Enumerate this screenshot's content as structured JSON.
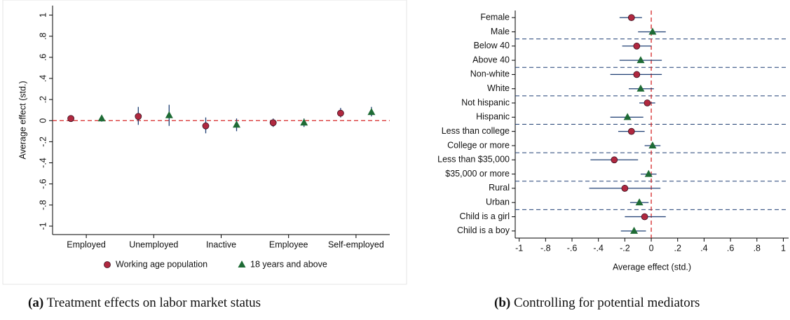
{
  "chart_data": [
    {
      "type": "errorbar",
      "ylabel": "Average effect (std.)",
      "categories": [
        "Employed",
        "Unemployed",
        "Inactive",
        "Employee",
        "Self-employed"
      ],
      "series": [
        {
          "name": "Working age population",
          "color": "#b0283f",
          "marker": "circle",
          "values": [
            0.02,
            0.04,
            -0.05,
            -0.02,
            0.07
          ],
          "lower": [
            -0.01,
            -0.04,
            -0.12,
            -0.06,
            0.03
          ],
          "upper": [
            0.05,
            0.13,
            0.03,
            0.02,
            0.12
          ]
        },
        {
          "name": "18 years and above",
          "color": "#1e6b35",
          "marker": "triangle",
          "values": [
            0.02,
            0.05,
            -0.04,
            -0.02,
            0.08
          ],
          "lower": [
            -0.01,
            -0.05,
            -0.1,
            -0.06,
            0.04
          ],
          "upper": [
            0.04,
            0.15,
            0.02,
            0.02,
            0.13
          ]
        }
      ],
      "ylim": [
        -1.08,
        1.09
      ],
      "yticks": [
        1,
        {
          "value": 0.8,
          "label": ".8"
        },
        {
          "value": 0.6,
          "label": ".6"
        },
        {
          "value": 0.4,
          "label": ".4"
        },
        {
          "value": 0.2,
          "label": ".2"
        },
        0,
        {
          "value": -0.2,
          "label": "-.2"
        },
        {
          "value": -0.4,
          "label": "-.4"
        },
        {
          "value": -0.6,
          "label": "-.6"
        },
        {
          "value": -0.8,
          "label": "-.8"
        },
        -1
      ],
      "refline": 0,
      "legend": "bottom",
      "caption_label": "(a)",
      "caption": "Treatment effects on labor market status"
    },
    {
      "type": "errorbar-h",
      "xlabel": "Average effect (std.)",
      "categories": [
        "Female",
        "Male",
        "Below 40",
        "Above 40",
        "Non-white",
        "White",
        "Not hispanic",
        "Hispanic",
        "Less than college",
        "College or more",
        "Less than $35,000",
        "$35,000 or more",
        "Rural",
        "Urban",
        "Child is a girl",
        "Child is a boy"
      ],
      "values": [
        -0.15,
        0.01,
        -0.11,
        -0.08,
        -0.11,
        -0.08,
        -0.03,
        -0.18,
        -0.15,
        0.01,
        -0.28,
        -0.02,
        -0.2,
        -0.09,
        -0.05,
        -0.13
      ],
      "lower": [
        -0.24,
        -0.1,
        -0.22,
        -0.24,
        -0.31,
        -0.17,
        -0.09,
        -0.31,
        -0.25,
        -0.05,
        -0.46,
        -0.08,
        -0.47,
        -0.16,
        -0.2,
        -0.23
      ],
      "upper": [
        -0.07,
        0.11,
        0.0,
        0.08,
        0.08,
        0.02,
        0.03,
        -0.06,
        -0.05,
        0.07,
        -0.1,
        0.04,
        0.07,
        -0.02,
        0.11,
        -0.04
      ],
      "markers": [
        "circle",
        "triangle",
        "circle",
        "triangle",
        "circle",
        "triangle",
        "circle",
        "triangle",
        "circle",
        "triangle",
        "circle",
        "triangle",
        "circle",
        "triangle",
        "circle",
        "triangle"
      ],
      "colors": {
        "circle": "#b0283f",
        "triangle": "#1e6b35"
      },
      "xlim": [
        -1.03,
        1.04
      ],
      "xticks": [
        -1,
        {
          "value": -0.8,
          "label": "-.8"
        },
        {
          "value": -0.6,
          "label": "-.6"
        },
        {
          "value": -0.4,
          "label": "-.4"
        },
        {
          "value": -0.2,
          "label": "-.2"
        },
        0,
        {
          "value": 0.2,
          "label": ".2"
        },
        {
          "value": 0.4,
          "label": ".4"
        },
        {
          "value": 0.6,
          "label": ".6"
        },
        {
          "value": 0.8,
          "label": ".8"
        },
        1
      ],
      "refline": 0,
      "caption_label": "(b)",
      "caption": "Controlling for potential mediators"
    }
  ]
}
